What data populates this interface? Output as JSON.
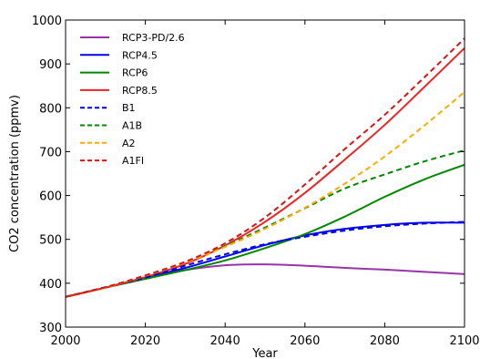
{
  "chart_data": {
    "type": "line",
    "title": "",
    "xlabel": "Year",
    "ylabel": "CO2 concentration (ppmv)",
    "xlim": [
      2000,
      2100
    ],
    "ylim": [
      300,
      1000
    ],
    "x_ticks": [
      2000,
      2020,
      2040,
      2060,
      2080,
      2100
    ],
    "y_ticks": [
      300,
      400,
      500,
      600,
      700,
      800,
      900,
      1000
    ],
    "grid": false,
    "legend_position": "top-left",
    "x": [
      2000,
      2010,
      2020,
      2030,
      2040,
      2050,
      2060,
      2070,
      2080,
      2090,
      2100
    ],
    "series": [
      {
        "name": "RCP3-PD/2.6",
        "style": "solid",
        "color": "#9933aa",
        "values": [
          369,
          390,
          412,
          430,
          441,
          443,
          440,
          435,
          431,
          426,
          421
        ]
      },
      {
        "name": "RCP4.5",
        "style": "solid",
        "color": "#0000ee",
        "values": [
          369,
          390,
          412,
          435,
          461,
          487,
          509,
          524,
          533,
          538,
          538
        ]
      },
      {
        "name": "RCP6",
        "style": "solid",
        "color": "#008800",
        "values": [
          369,
          390,
          410,
          430,
          452,
          480,
          512,
          552,
          597,
          637,
          670
        ]
      },
      {
        "name": "RCP8.5",
        "style": "solid",
        "color": "#ee2222",
        "values": [
          369,
          390,
          414,
          444,
          486,
          540,
          606,
          682,
          761,
          848,
          936
        ]
      },
      {
        "name": "B1",
        "style": "dashed",
        "color": "#0000ee",
        "values": [
          369,
          391,
          413,
          440,
          466,
          489,
          506,
          520,
          530,
          536,
          540
        ]
      },
      {
        "name": "A1B",
        "style": "dashed",
        "color": "#008800",
        "values": [
          369,
          390,
          417,
          448,
          485,
          527,
          571,
          616,
          648,
          678,
          703
        ]
      },
      {
        "name": "A2",
        "style": "dashed",
        "color": "#ffaa00",
        "values": [
          369,
          390,
          417,
          447,
          483,
          524,
          572,
          627,
          689,
          760,
          836
        ]
      },
      {
        "name": "A1FI",
        "style": "dashed",
        "color": "#dd1111",
        "values": [
          369,
          391,
          418,
          449,
          491,
          550,
          625,
          706,
          784,
          870,
          958
        ]
      }
    ]
  }
}
